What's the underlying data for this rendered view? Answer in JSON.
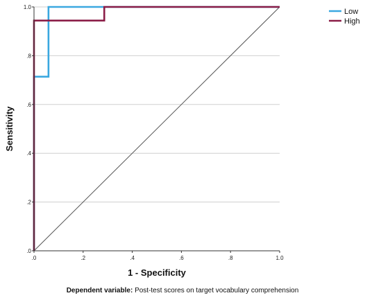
{
  "chart_data": {
    "type": "line",
    "xlabel": "1 - Specificity",
    "ylabel": "Sensitivity",
    "xlim": [
      0,
      1
    ],
    "ylim": [
      0,
      1
    ],
    "x_ticks": [
      ".0",
      ".2",
      ".4",
      ".6",
      ".8",
      "1.0"
    ],
    "y_ticks": [
      ".0",
      ".2",
      ".4",
      ".6",
      ".8",
      "1.0"
    ],
    "grid": "horizontal",
    "legend_position": "top-right",
    "reference_line": true,
    "series": [
      {
        "name": "Low",
        "color": "#3aa8e0",
        "points": [
          [
            0,
            0
          ],
          [
            0,
            0.714
          ],
          [
            0.059,
            0.714
          ],
          [
            0.059,
            1.0
          ],
          [
            1.0,
            1.0
          ]
        ]
      },
      {
        "name": "High",
        "color": "#8b1d47",
        "points": [
          [
            0,
            0
          ],
          [
            0,
            0.944
          ],
          [
            0.286,
            0.944
          ],
          [
            0.286,
            1.0
          ],
          [
            1.0,
            1.0
          ]
        ]
      }
    ]
  },
  "footnote": {
    "label": "Dependent variable:",
    "text": "Post-test scores on target vocabulary comprehension"
  }
}
